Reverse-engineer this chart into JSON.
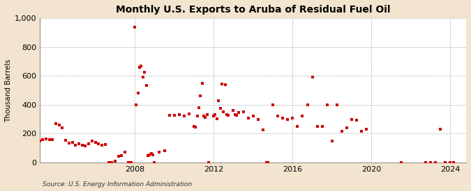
{
  "title": "Monthly U.S. Exports to Aruba of Residual Fuel Oil",
  "ylabel": "Thousand Barrels",
  "source": "Source: U.S. Energy Information Administration",
  "background_color": "#f2e4ce",
  "plot_background_color": "#ffffff",
  "marker_color": "#cc0000",
  "marker_size": 3.5,
  "xlim_start": 2003.2,
  "xlim_end": 2024.8,
  "ylim": [
    0,
    1000
  ],
  "yticks": [
    0,
    200,
    400,
    600,
    800,
    1000
  ],
  "xticks": [
    2008,
    2012,
    2016,
    2020,
    2024
  ],
  "title_fontsize": 10,
  "tick_fontsize": 8,
  "ylabel_fontsize": 7.5,
  "data": [
    [
      2003.0,
      155
    ],
    [
      2003.17,
      150
    ],
    [
      2003.33,
      160
    ],
    [
      2003.5,
      165
    ],
    [
      2003.67,
      160
    ],
    [
      2003.83,
      160
    ],
    [
      2004.0,
      270
    ],
    [
      2004.17,
      260
    ],
    [
      2004.33,
      240
    ],
    [
      2004.5,
      155
    ],
    [
      2004.67,
      135
    ],
    [
      2004.83,
      140
    ],
    [
      2005.0,
      120
    ],
    [
      2005.17,
      130
    ],
    [
      2005.33,
      120
    ],
    [
      2005.5,
      115
    ],
    [
      2005.67,
      130
    ],
    [
      2005.83,
      150
    ],
    [
      2006.0,
      140
    ],
    [
      2006.17,
      130
    ],
    [
      2006.33,
      120
    ],
    [
      2006.5,
      125
    ],
    [
      2006.67,
      0
    ],
    [
      2006.83,
      0
    ],
    [
      2007.0,
      10
    ],
    [
      2007.17,
      45
    ],
    [
      2007.33,
      50
    ],
    [
      2007.5,
      70
    ],
    [
      2007.67,
      0
    ],
    [
      2007.83,
      0
    ],
    [
      2008.0,
      940
    ],
    [
      2008.08,
      400
    ],
    [
      2008.17,
      480
    ],
    [
      2008.25,
      660
    ],
    [
      2008.33,
      670
    ],
    [
      2008.42,
      590
    ],
    [
      2008.5,
      625
    ],
    [
      2008.58,
      535
    ],
    [
      2008.67,
      50
    ],
    [
      2008.75,
      55
    ],
    [
      2008.83,
      60
    ],
    [
      2008.92,
      55
    ],
    [
      2009.0,
      0
    ],
    [
      2009.25,
      70
    ],
    [
      2009.5,
      80
    ],
    [
      2009.75,
      325
    ],
    [
      2010.0,
      325
    ],
    [
      2010.25,
      330
    ],
    [
      2010.5,
      320
    ],
    [
      2010.75,
      335
    ],
    [
      2011.0,
      250
    ],
    [
      2011.08,
      245
    ],
    [
      2011.17,
      320
    ],
    [
      2011.25,
      380
    ],
    [
      2011.33,
      460
    ],
    [
      2011.42,
      550
    ],
    [
      2011.5,
      320
    ],
    [
      2011.58,
      315
    ],
    [
      2011.67,
      330
    ],
    [
      2011.75,
      0
    ],
    [
      2012.0,
      320
    ],
    [
      2012.08,
      330
    ],
    [
      2012.17,
      305
    ],
    [
      2012.25,
      430
    ],
    [
      2012.33,
      375
    ],
    [
      2012.42,
      545
    ],
    [
      2012.5,
      350
    ],
    [
      2012.58,
      540
    ],
    [
      2012.67,
      330
    ],
    [
      2012.75,
      325
    ],
    [
      2013.0,
      360
    ],
    [
      2013.08,
      330
    ],
    [
      2013.17,
      325
    ],
    [
      2013.25,
      345
    ],
    [
      2013.5,
      350
    ],
    [
      2013.75,
      310
    ],
    [
      2014.0,
      320
    ],
    [
      2014.25,
      300
    ],
    [
      2014.5,
      225
    ],
    [
      2014.67,
      0
    ],
    [
      2014.75,
      0
    ],
    [
      2015.0,
      400
    ],
    [
      2015.25,
      320
    ],
    [
      2015.5,
      310
    ],
    [
      2015.75,
      300
    ],
    [
      2016.0,
      310
    ],
    [
      2016.25,
      250
    ],
    [
      2016.5,
      320
    ],
    [
      2016.75,
      400
    ],
    [
      2017.0,
      590
    ],
    [
      2017.25,
      250
    ],
    [
      2017.5,
      250
    ],
    [
      2017.75,
      400
    ],
    [
      2018.0,
      150
    ],
    [
      2018.25,
      400
    ],
    [
      2018.5,
      215
    ],
    [
      2018.75,
      240
    ],
    [
      2019.0,
      300
    ],
    [
      2019.25,
      295
    ],
    [
      2019.5,
      215
    ],
    [
      2019.75,
      230
    ],
    [
      2021.5,
      0
    ],
    [
      2022.75,
      0
    ],
    [
      2023.0,
      0
    ],
    [
      2023.25,
      0
    ],
    [
      2023.5,
      230
    ],
    [
      2023.75,
      0
    ],
    [
      2024.0,
      0
    ],
    [
      2024.17,
      0
    ]
  ]
}
